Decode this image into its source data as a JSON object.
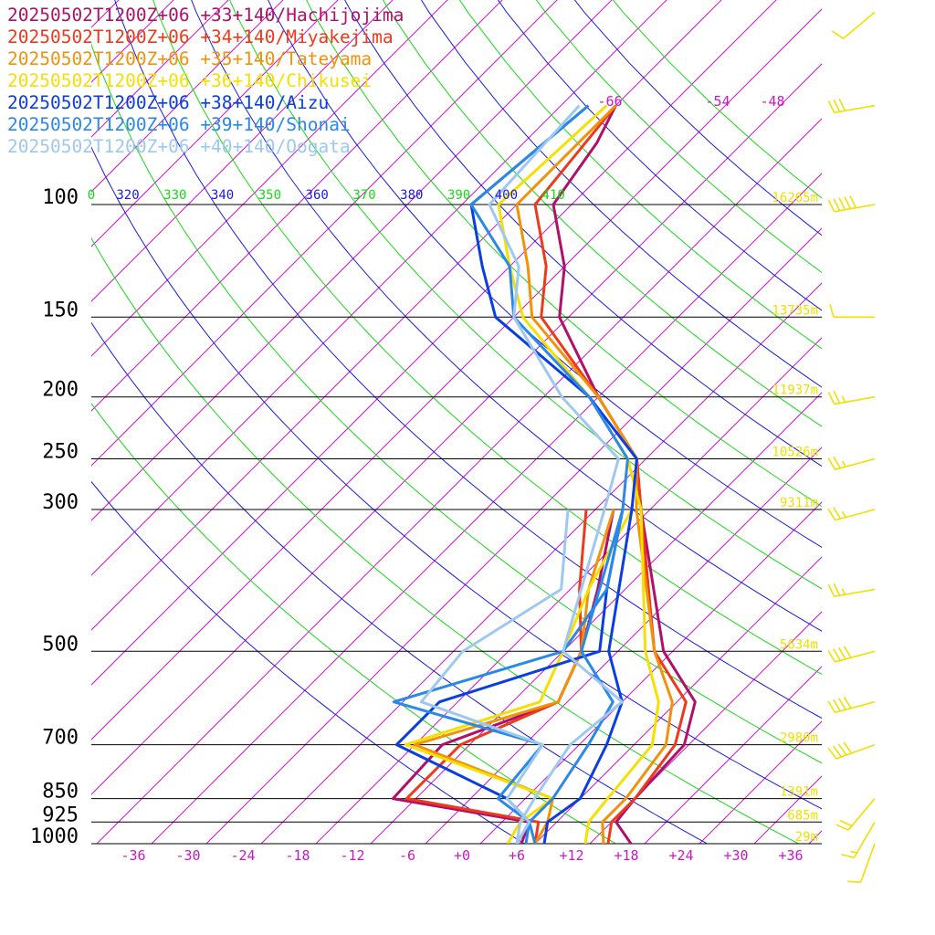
{
  "chart_data": {
    "type": "line",
    "title": "",
    "xlabel": "",
    "ylabel": "",
    "pressure_ticks": [
      100,
      150,
      200,
      250,
      300,
      500,
      700,
      850,
      925,
      1000
    ],
    "temperature_ticks": [
      "-36",
      "-30",
      "-24",
      "-18",
      "-12",
      "-6",
      "+0",
      "+6",
      "+12",
      "+18",
      "+24",
      "+30",
      "+36"
    ],
    "upper_isotherm_labels": [
      "-66",
      "-54",
      "-48"
    ],
    "theta_ticks": [
      "0",
      "320",
      "330",
      "340",
      "350",
      "360",
      "370",
      "380",
      "390",
      "400",
      "410"
    ],
    "heights": [
      {
        "p": 100,
        "label": "16265m"
      },
      {
        "p": 150,
        "label": "13735m"
      },
      {
        "p": 200,
        "label": "11937m"
      },
      {
        "p": 250,
        "label": "10526m"
      },
      {
        "p": 300,
        "label": "9311m"
      },
      {
        "p": 500,
        "label": "5634m"
      },
      {
        "p": 700,
        "label": "2980m"
      },
      {
        "p": 850,
        "label": "1391m"
      },
      {
        "p": 925,
        "label": "685m"
      },
      {
        "p": 1000,
        "label": "29m"
      }
    ],
    "series": [
      {
        "name": "20250502T1200Z+06 +33+140/Hachijojima",
        "color": "#b0106a",
        "temperature": [
          [
            1000,
            18.5
          ],
          [
            925,
            14.5
          ],
          [
            850,
            14
          ],
          [
            700,
            13.5
          ],
          [
            600,
            10
          ],
          [
            500,
            1
          ],
          [
            300,
            -17
          ],
          [
            250,
            -23
          ],
          [
            200,
            -34
          ],
          [
            150,
            -47
          ],
          [
            125,
            -52
          ],
          [
            100,
            -60
          ],
          [
            80,
            -62
          ],
          [
            70,
            -64
          ]
        ],
        "dewpoint": [
          [
            1000,
            6.5
          ],
          [
            925,
            5
          ],
          [
            850,
            -12.5
          ],
          [
            700,
            -13
          ],
          [
            600,
            -5
          ],
          [
            500,
            -8
          ],
          [
            400,
            -13
          ],
          [
            300,
            -20
          ]
        ]
      },
      {
        "name": "20250502T1200Z+06 +34+140/Miyakejima",
        "color": "#ee3a1a",
        "temperature": [
          [
            1000,
            16
          ],
          [
            925,
            14
          ],
          [
            850,
            14
          ],
          [
            700,
            12.5
          ],
          [
            600,
            9
          ],
          [
            500,
            0
          ],
          [
            300,
            -17
          ],
          [
            250,
            -23
          ],
          [
            200,
            -34
          ],
          [
            150,
            -49
          ],
          [
            125,
            -54
          ],
          [
            100,
            -62
          ],
          [
            70,
            -64
          ]
        ],
        "dewpoint": [
          [
            1000,
            8
          ],
          [
            925,
            6
          ],
          [
            850,
            -11
          ],
          [
            700,
            -11
          ],
          [
            600,
            -5
          ],
          [
            500,
            -8
          ],
          [
            400,
            -15
          ],
          [
            300,
            -23
          ]
        ]
      },
      {
        "name": "20250502T1200Z+06 +35+140/Tateyama",
        "color": "#f2920a",
        "temperature": [
          [
            1000,
            15.5
          ],
          [
            925,
            13
          ],
          [
            850,
            13
          ],
          [
            700,
            11.5
          ],
          [
            600,
            7.5
          ],
          [
            500,
            0
          ],
          [
            300,
            -17.5
          ],
          [
            250,
            -23
          ],
          [
            200,
            -34
          ],
          [
            150,
            -50
          ],
          [
            125,
            -56
          ],
          [
            100,
            -64
          ],
          [
            70,
            -64
          ]
        ],
        "dewpoint": [
          [
            1000,
            8
          ],
          [
            925,
            7
          ],
          [
            850,
            5
          ],
          [
            700,
            -16
          ],
          [
            600,
            -5
          ],
          [
            500,
            -8
          ],
          [
            400,
            -14
          ],
          [
            300,
            -20
          ]
        ]
      },
      {
        "name": "20250502T1200Z+06 +36+140/Chikusei",
        "color": "#f5e000",
        "temperature": [
          [
            1000,
            13.5
          ],
          [
            925,
            11.5
          ],
          [
            850,
            11
          ],
          [
            700,
            10
          ],
          [
            600,
            6
          ],
          [
            500,
            -1
          ],
          [
            300,
            -17
          ],
          [
            250,
            -24
          ],
          [
            200,
            -35
          ],
          [
            150,
            -51
          ],
          [
            125,
            -58
          ],
          [
            100,
            -66
          ],
          [
            70,
            -65
          ]
        ],
        "dewpoint": [
          [
            1000,
            5
          ],
          [
            925,
            4
          ],
          [
            850,
            5
          ],
          [
            700,
            -17
          ],
          [
            600,
            -7
          ],
          [
            500,
            -10
          ],
          [
            400,
            -14
          ],
          [
            300,
            -18
          ]
        ]
      },
      {
        "name": "20250502T1200Z+06 +38+140/Aizu",
        "color": "#0a3ee0",
        "temperature": [
          [
            1000,
            9
          ],
          [
            925,
            7
          ],
          [
            850,
            8
          ],
          [
            700,
            5
          ],
          [
            600,
            2
          ],
          [
            500,
            -5
          ],
          [
            300,
            -18
          ],
          [
            250,
            -23
          ],
          [
            200,
            -35
          ],
          [
            150,
            -54
          ],
          [
            125,
            -61
          ],
          [
            100,
            -69
          ],
          [
            70,
            -67
          ]
        ],
        "dewpoint": [
          [
            1000,
            6
          ],
          [
            925,
            5
          ],
          [
            850,
            0
          ],
          [
            700,
            -18
          ],
          [
            600,
            -18
          ],
          [
            500,
            -6
          ],
          [
            400,
            -12
          ],
          [
            300,
            -19
          ]
        ]
      },
      {
        "name": "20250502T1200Z+06 +39+140/Shonai",
        "color": "#2a88e8",
        "temperature": [
          [
            1000,
            8
          ],
          [
            925,
            5
          ],
          [
            850,
            5
          ],
          [
            700,
            3
          ],
          [
            600,
            1
          ],
          [
            500,
            -8
          ],
          [
            300,
            -19
          ],
          [
            250,
            -24
          ],
          [
            200,
            -35
          ],
          [
            150,
            -52
          ],
          [
            125,
            -58
          ],
          [
            100,
            -69
          ],
          [
            70,
            -67
          ]
        ],
        "dewpoint": [
          [
            1000,
            7
          ],
          [
            925,
            5
          ],
          [
            850,
            -1
          ],
          [
            700,
            -2
          ],
          [
            600,
            -23
          ],
          [
            500,
            -10
          ],
          [
            400,
            -12
          ],
          [
            300,
            -19
          ]
        ]
      },
      {
        "name": "20250502T1200Z+06 +40+140/Oogata",
        "color": "#9ec8f0",
        "temperature": [
          [
            1000,
            6
          ],
          [
            925,
            4
          ],
          [
            850,
            3
          ],
          [
            700,
            1
          ],
          [
            600,
            2
          ],
          [
            500,
            -10
          ],
          [
            300,
            -21
          ],
          [
            250,
            -25
          ],
          [
            200,
            -38
          ],
          [
            150,
            -52
          ],
          [
            125,
            -57
          ],
          [
            100,
            -67
          ],
          [
            70,
            -68
          ]
        ],
        "dewpoint": [
          [
            1000,
            6
          ],
          [
            925,
            5
          ],
          [
            850,
            0
          ],
          [
            700,
            -2
          ],
          [
            600,
            -20
          ],
          [
            500,
            -21
          ],
          [
            400,
            -17
          ],
          [
            300,
            -25
          ]
        ]
      }
    ],
    "wind_barbs": [
      {
        "p": 1000,
        "speed_kt": 10,
        "dir": 200
      },
      {
        "p": 925,
        "speed_kt": 15,
        "dir": 210
      },
      {
        "p": 850,
        "speed_kt": 20,
        "dir": 220
      },
      {
        "p": 700,
        "speed_kt": 40,
        "dir": 250
      },
      {
        "p": 600,
        "speed_kt": 40,
        "dir": 255
      },
      {
        "p": 500,
        "speed_kt": 40,
        "dir": 255
      },
      {
        "p": 400,
        "speed_kt": 25,
        "dir": 260
      },
      {
        "p": 300,
        "speed_kt": 25,
        "dir": 255
      },
      {
        "p": 250,
        "speed_kt": 25,
        "dir": 255
      },
      {
        "p": 200,
        "speed_kt": 25,
        "dir": 260
      },
      {
        "p": 150,
        "speed_kt": 10,
        "dir": 270
      },
      {
        "p": 100,
        "speed_kt": 50,
        "dir": 260
      },
      {
        "p": 70,
        "speed_kt": 30,
        "dir": 260
      },
      {
        "p": 50,
        "speed_kt": 10,
        "dir": 230
      }
    ],
    "colors": {
      "isobar": "#000000",
      "isotherm": "#c818c8",
      "isentrope_blue": "#1a1ae0",
      "isentrope_green": "#18d818",
      "height_label": "#f0e000",
      "barb": "#f0e000"
    }
  }
}
